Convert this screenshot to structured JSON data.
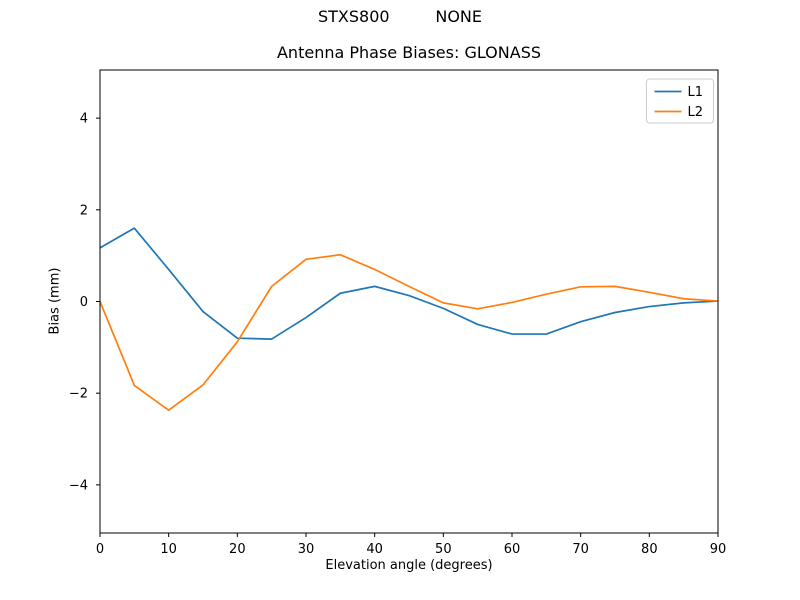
{
  "header": {
    "suptitle": "STXS800         NONE"
  },
  "chart_data": {
    "type": "line",
    "title": "Antenna Phase Biases: GLONASS",
    "xlabel": "Elevation angle (degrees)",
    "ylabel": "Bias (mm)",
    "xlim": [
      0,
      90
    ],
    "ylim": [
      -5.05,
      5.05
    ],
    "xticks": [
      0,
      10,
      20,
      30,
      40,
      50,
      60,
      70,
      80,
      90
    ],
    "yticks": [
      -4,
      -2,
      0,
      2,
      4
    ],
    "grid": false,
    "legend_position": "upper right",
    "x": [
      0,
      5,
      10,
      15,
      20,
      25,
      30,
      35,
      40,
      45,
      50,
      55,
      60,
      65,
      70,
      75,
      80,
      85,
      90
    ],
    "series": [
      {
        "name": "L1",
        "color": "#1f77b4",
        "values": [
          1.17,
          1.6,
          0.7,
          -0.22,
          -0.8,
          -0.82,
          -0.35,
          0.18,
          0.33,
          0.13,
          -0.15,
          -0.5,
          -0.71,
          -0.71,
          -0.44,
          -0.24,
          -0.11,
          -0.03,
          0.01
        ]
      },
      {
        "name": "L2",
        "color": "#ff7f0e",
        "values": [
          0.0,
          -1.83,
          -2.37,
          -1.82,
          -0.88,
          0.33,
          0.92,
          1.02,
          0.7,
          0.33,
          -0.03,
          -0.16,
          -0.02,
          0.16,
          0.32,
          0.33,
          0.2,
          0.06,
          0.01
        ]
      }
    ],
    "axis_color": "#000000",
    "legend_border_color": "#cccccc",
    "legend_background": "#ffffff"
  }
}
